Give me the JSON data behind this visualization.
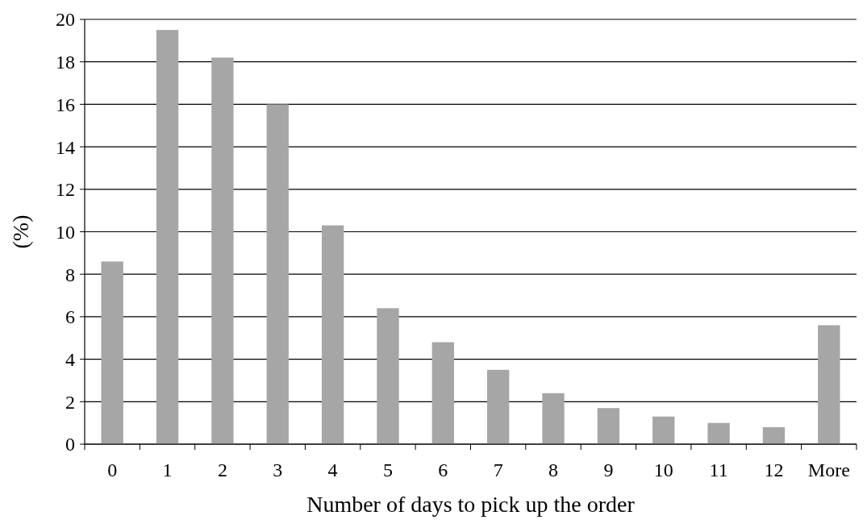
{
  "chart_data": {
    "type": "bar",
    "xlabel": "Number of days to pick up the order",
    "ylabel": "(%)",
    "categories": [
      "0",
      "1",
      "2",
      "3",
      "4",
      "5",
      "6",
      "7",
      "8",
      "9",
      "10",
      "11",
      "12",
      "More"
    ],
    "values": [
      8.6,
      19.5,
      18.2,
      16.0,
      10.3,
      6.4,
      4.8,
      3.5,
      2.4,
      1.7,
      1.3,
      1.0,
      0.8,
      5.6
    ],
    "color": "#a6a6a6",
    "ylim": [
      0,
      20
    ],
    "yticks": [
      0,
      2,
      4,
      6,
      8,
      10,
      12,
      14,
      16,
      18,
      20
    ],
    "grid": "y"
  }
}
